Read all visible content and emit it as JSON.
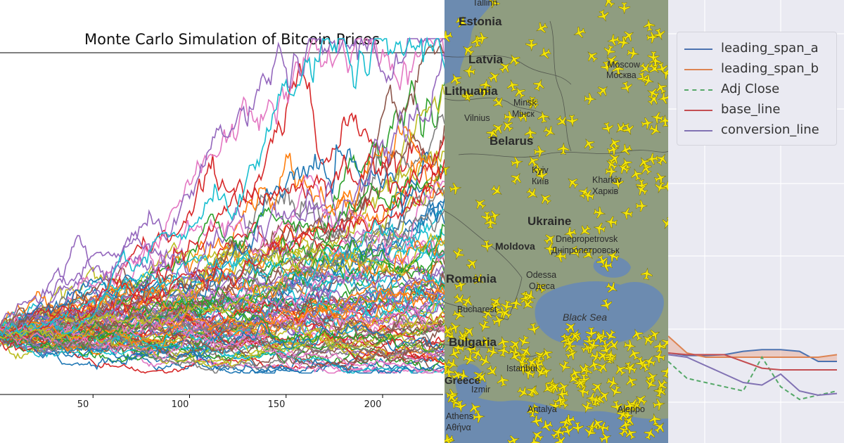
{
  "monte_carlo": {
    "title": "Monte Carlo Simulation of Bitcoin Prices",
    "x_ticks": [
      "50",
      "100",
      "150",
      "200"
    ]
  },
  "map": {
    "countries": [
      "Estonia",
      "Latvia",
      "Lithuania",
      "Belarus",
      "Ukraine",
      "Moldova",
      "Romania",
      "Bulgaria",
      "Greece"
    ],
    "cities": [
      "Tallinn",
      "Moscow",
      "Москва",
      "Minsk",
      "Мінск",
      "Vilnius",
      "Kyiv",
      "Київ",
      "Kharkiv",
      "Харків",
      "Dnepropetrovsk",
      "Днiпропетровськ",
      "Odessa",
      "Одеса",
      "Bucharest",
      "Istanbul",
      "Izmir",
      "Athens",
      "Αθήνα",
      "Antalya",
      "Aleppo"
    ],
    "sea": "Black Sea"
  },
  "ichimoku": {
    "legend": [
      {
        "label": "leading_span_a",
        "color": "#4c72b0",
        "dashed": false
      },
      {
        "label": "leading_span_b",
        "color": "#dd8452",
        "dashed": false
      },
      {
        "label": "Adj Close",
        "color": "#55a868",
        "dashed": true
      },
      {
        "label": "base_line",
        "color": "#c44e52",
        "dashed": false
      },
      {
        "label": "conversion_line",
        "color": "#8172b3",
        "dashed": false
      }
    ]
  },
  "chart_data": [
    {
      "type": "line",
      "title": "Monte Carlo Simulation of Bitcoin Prices",
      "xlabel": "",
      "ylabel": "",
      "xlim": [
        0,
        240
      ],
      "x_tick_values": [
        50,
        100,
        150,
        200
      ],
      "series_count": 100,
      "steps": 240,
      "start_value": 1.0,
      "final_value_range": [
        0.7,
        3.6
      ],
      "grid": false
    },
    {
      "type": "line",
      "series": [
        {
          "name": "leading_span_a",
          "values": [
            1.0,
            0.97,
            0.97,
            0.98,
            1.02,
            1.04,
            1.04,
            1.02,
            0.9,
            0.9
          ]
        },
        {
          "name": "leading_span_b",
          "values": [
            1.2,
            1.0,
            0.95,
            0.95,
            0.95,
            0.95,
            0.95,
            0.95,
            0.95,
            0.98
          ]
        },
        {
          "name": "Adj Close",
          "values": [
            0.9,
            0.7,
            0.65,
            0.6,
            0.55,
            0.95,
            0.6,
            0.45,
            0.5,
            0.55
          ]
        },
        {
          "name": "base_line",
          "values": [
            1.0,
            0.98,
            0.98,
            0.98,
            0.9,
            0.82,
            0.8,
            0.8,
            0.8,
            0.8
          ]
        },
        {
          "name": "conversion_line",
          "values": [
            0.98,
            0.95,
            0.85,
            0.75,
            0.65,
            0.62,
            0.75,
            0.55,
            0.5,
            0.52
          ]
        }
      ],
      "legend_position": "top-left",
      "grid": true
    }
  ]
}
